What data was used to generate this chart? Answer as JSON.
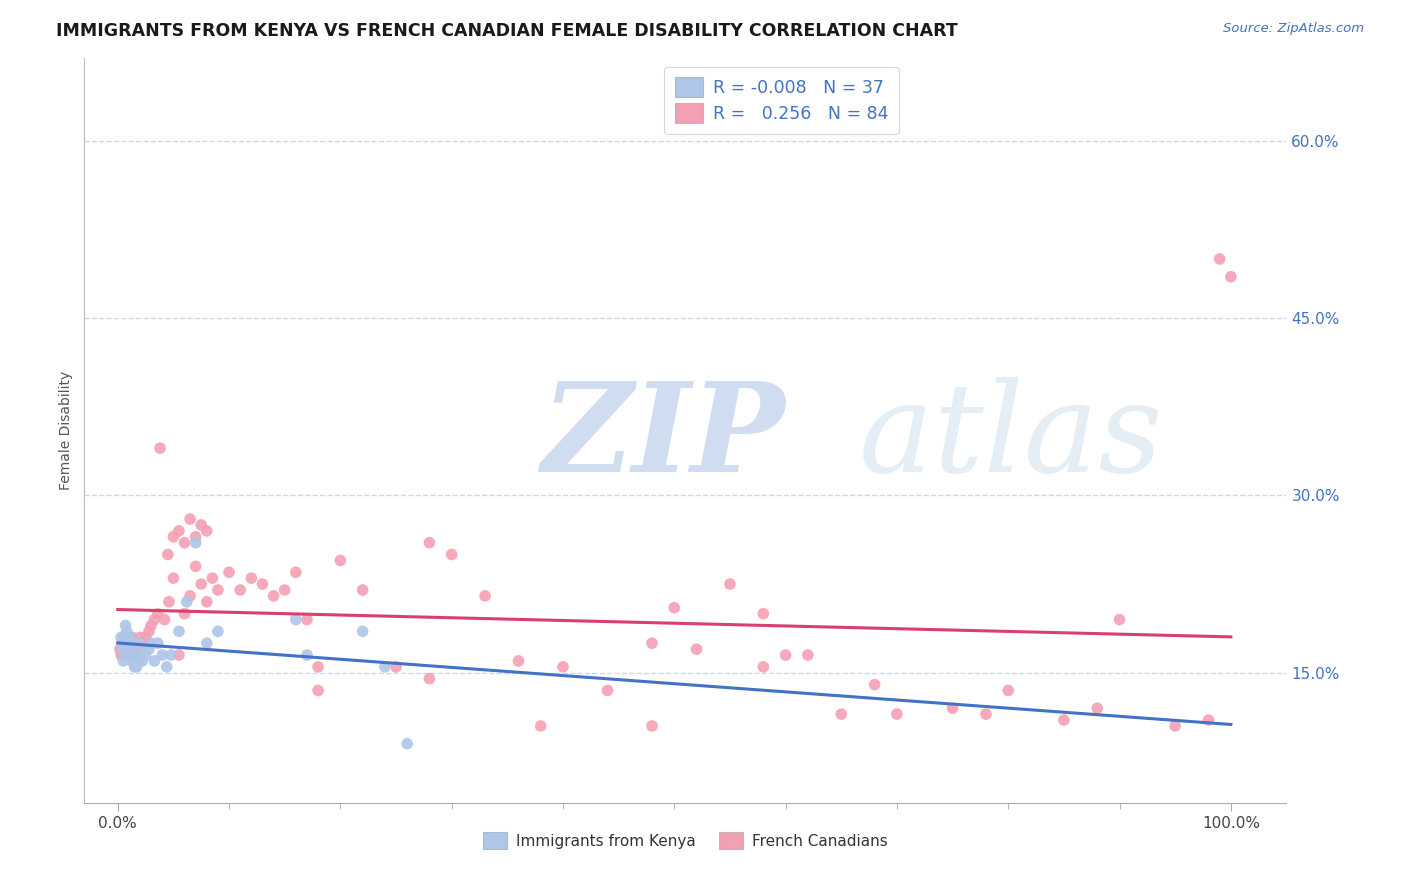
{
  "title": "IMMIGRANTS FROM KENYA VS FRENCH CANADIAN FEMALE DISABILITY CORRELATION CHART",
  "source_text": "Source: ZipAtlas.com",
  "ylabel": "Female Disability",
  "color_kenya": "#aec6e8",
  "color_french": "#f4a0b4",
  "color_line_kenya": "#4472c4",
  "color_line_french": "#d94070",
  "color_r_values": "#4472c4",
  "color_grid": "#c8d8ee",
  "bg_color": "#ffffff",
  "r1": "-0.008",
  "n1": "37",
  "r2": "0.256",
  "n2": "84",
  "legend1": "Immigrants from Kenya",
  "legend2": "French Canadians",
  "y_ticks": [
    0.15,
    0.3,
    0.45,
    0.6
  ],
  "y_tick_labels": [
    "15.0%",
    "30.0%",
    "45.0%",
    "60.0%"
  ],
  "xlim": [
    -0.03,
    1.05
  ],
  "ylim": [
    0.04,
    0.67
  ],
  "kenya_x": [
    0.003,
    0.004,
    0.005,
    0.006,
    0.007,
    0.008,
    0.009,
    0.01,
    0.011,
    0.012,
    0.013,
    0.014,
    0.015,
    0.016,
    0.017,
    0.018,
    0.019,
    0.02,
    0.022,
    0.025,
    0.028,
    0.03,
    0.033,
    0.036,
    0.04,
    0.044,
    0.048,
    0.055,
    0.062,
    0.07,
    0.08,
    0.09,
    0.16,
    0.17,
    0.22,
    0.24,
    0.26
  ],
  "kenya_y": [
    0.18,
    0.17,
    0.16,
    0.175,
    0.19,
    0.185,
    0.165,
    0.17,
    0.18,
    0.175,
    0.16,
    0.165,
    0.155,
    0.17,
    0.155,
    0.16,
    0.175,
    0.165,
    0.16,
    0.165,
    0.17,
    0.175,
    0.16,
    0.175,
    0.165,
    0.155,
    0.165,
    0.185,
    0.21,
    0.26,
    0.175,
    0.185,
    0.195,
    0.165,
    0.185,
    0.155,
    0.09
  ],
  "french_x": [
    0.002,
    0.003,
    0.004,
    0.006,
    0.007,
    0.008,
    0.009,
    0.01,
    0.011,
    0.012,
    0.013,
    0.015,
    0.017,
    0.018,
    0.02,
    0.022,
    0.025,
    0.028,
    0.03,
    0.033,
    0.036,
    0.038,
    0.042,
    0.046,
    0.05,
    0.055,
    0.06,
    0.065,
    0.07,
    0.075,
    0.08,
    0.085,
    0.09,
    0.1,
    0.11,
    0.12,
    0.13,
    0.14,
    0.15,
    0.16,
    0.17,
    0.18,
    0.2,
    0.22,
    0.25,
    0.28,
    0.3,
    0.33,
    0.36,
    0.4,
    0.44,
    0.48,
    0.5,
    0.52,
    0.55,
    0.58,
    0.6,
    0.62,
    0.65,
    0.7,
    0.75,
    0.8,
    0.85,
    0.9,
    0.95,
    1.0,
    0.045,
    0.05,
    0.055,
    0.06,
    0.065,
    0.07,
    0.075,
    0.08,
    0.18,
    0.28,
    0.38,
    0.48,
    0.58,
    0.68,
    0.78,
    0.88,
    0.98,
    0.99
  ],
  "french_y": [
    0.17,
    0.165,
    0.175,
    0.18,
    0.165,
    0.17,
    0.175,
    0.18,
    0.165,
    0.17,
    0.18,
    0.175,
    0.17,
    0.175,
    0.18,
    0.175,
    0.18,
    0.185,
    0.19,
    0.195,
    0.2,
    0.34,
    0.195,
    0.21,
    0.23,
    0.165,
    0.2,
    0.215,
    0.24,
    0.225,
    0.21,
    0.23,
    0.22,
    0.235,
    0.22,
    0.23,
    0.225,
    0.215,
    0.22,
    0.235,
    0.195,
    0.155,
    0.245,
    0.22,
    0.155,
    0.26,
    0.25,
    0.215,
    0.16,
    0.155,
    0.135,
    0.175,
    0.205,
    0.17,
    0.225,
    0.2,
    0.165,
    0.165,
    0.115,
    0.115,
    0.12,
    0.135,
    0.11,
    0.195,
    0.105,
    0.485,
    0.25,
    0.265,
    0.27,
    0.26,
    0.28,
    0.265,
    0.275,
    0.27,
    0.135,
    0.145,
    0.105,
    0.105,
    0.155,
    0.14,
    0.115,
    0.12,
    0.11,
    0.5
  ]
}
